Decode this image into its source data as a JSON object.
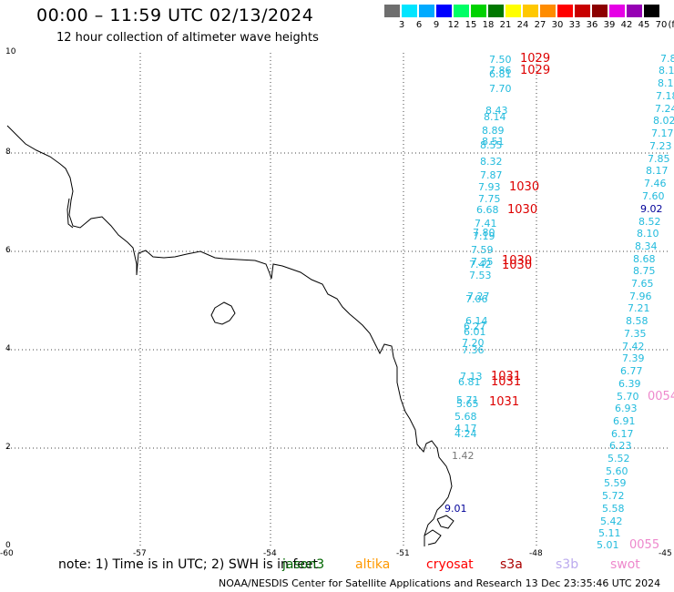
{
  "header": {
    "title": "00:00 – 11:59 UTC 02/13/2024",
    "subtitle": "12 hour collection of altimeter wave heights"
  },
  "legend": {
    "unit": "(ft)",
    "swatch_colors": [
      "#6e6e6e",
      "#00e5ff",
      "#00aaff",
      "#0000ff",
      "#00ff66",
      "#00d200",
      "#007800",
      "#ffff00",
      "#ffc800",
      "#ff8c00",
      "#ff0000",
      "#c80000",
      "#8c0000",
      "#e600e6",
      "#9600b4",
      "#000000"
    ],
    "ticks": [
      "3",
      "6",
      "9",
      "12",
      "15",
      "18",
      "21",
      "24",
      "27",
      "30",
      "33",
      "36",
      "39",
      "42",
      "45",
      "70"
    ]
  },
  "axes": {
    "lon_labels": [
      "-60",
      "-57",
      "-54",
      "-51",
      "-48",
      "-45"
    ],
    "lat_labels": [
      "10",
      "8",
      "6",
      "4",
      "2",
      "0"
    ]
  },
  "colors": {
    "s3a": "#dd0000",
    "cyan": "#22bbdd",
    "navy": "#000099",
    "gray": "#777777",
    "swot": "#ee88cc"
  },
  "measurements": [
    {
      "text": "7.50",
      "color": "cyan"
    },
    {
      "text": "7.86",
      "color": "cyan"
    },
    {
      "text": "6.81",
      "color": "cyan"
    },
    {
      "text": "7.70",
      "color": "cyan"
    },
    {
      "text": "8.43",
      "color": "cyan"
    },
    {
      "text": "8.14",
      "color": "cyan"
    },
    {
      "text": "8.89",
      "color": "cyan"
    },
    {
      "text": "8.51",
      "color": "cyan"
    },
    {
      "text": "8.55",
      "color": "cyan"
    },
    {
      "text": "8.32",
      "color": "cyan"
    },
    {
      "text": "7.87",
      "color": "cyan"
    },
    {
      "text": "7.93",
      "color": "cyan"
    },
    {
      "text": "7.75",
      "color": "cyan"
    },
    {
      "text": "6.68",
      "color": "cyan"
    },
    {
      "text": "7.41",
      "color": "cyan"
    },
    {
      "text": "7.80",
      "color": "cyan"
    },
    {
      "text": "7.19",
      "color": "cyan"
    },
    {
      "text": "7.59",
      "color": "cyan"
    },
    {
      "text": "7.35",
      "color": "cyan"
    },
    {
      "text": "7.42",
      "color": "cyan"
    },
    {
      "text": "7.53",
      "color": "cyan"
    },
    {
      "text": "7.27",
      "color": "cyan"
    },
    {
      "text": "7.06",
      "color": "cyan"
    },
    {
      "text": "6.14",
      "color": "cyan"
    },
    {
      "text": "6.27",
      "color": "cyan"
    },
    {
      "text": "6.01",
      "color": "cyan"
    },
    {
      "text": "7.20",
      "color": "cyan"
    },
    {
      "text": "7.36",
      "color": "cyan"
    },
    {
      "text": "7.13",
      "color": "cyan"
    },
    {
      "text": "6.81",
      "color": "cyan"
    },
    {
      "text": "5.71",
      "color": "cyan"
    },
    {
      "text": "5.65",
      "color": "cyan"
    },
    {
      "text": "5.68",
      "color": "cyan"
    },
    {
      "text": "4.17",
      "color": "cyan"
    },
    {
      "text": "4.24",
      "color": "cyan"
    },
    {
      "text": "1.42",
      "color": "gray"
    },
    {
      "text": "9.01",
      "color": "navy"
    },
    {
      "text": "1029",
      "color": "s3a"
    },
    {
      "text": "1029",
      "color": "s3a"
    },
    {
      "text": "1030",
      "color": "s3a"
    },
    {
      "text": "1030",
      "color": "s3a"
    },
    {
      "text": "1030",
      "color": "s3a"
    },
    {
      "text": "1030",
      "color": "s3a"
    },
    {
      "text": "1031",
      "color": "s3a"
    },
    {
      "text": "1031",
      "color": "s3a"
    },
    {
      "text": "1031",
      "color": "s3a"
    },
    {
      "text": "7.8",
      "color": "cyan"
    },
    {
      "text": "8.1",
      "color": "cyan"
    },
    {
      "text": "8.1",
      "color": "cyan"
    },
    {
      "text": "7.18",
      "color": "cyan"
    },
    {
      "text": "7.24",
      "color": "cyan"
    },
    {
      "text": "8.02",
      "color": "cyan"
    },
    {
      "text": "7.17",
      "color": "cyan"
    },
    {
      "text": "7.23",
      "color": "cyan"
    },
    {
      "text": "7.85",
      "color": "cyan"
    },
    {
      "text": "8.17",
      "color": "cyan"
    },
    {
      "text": "7.46",
      "color": "cyan"
    },
    {
      "text": "7.60",
      "color": "cyan"
    },
    {
      "text": "9.02",
      "color": "navy"
    },
    {
      "text": "8.52",
      "color": "cyan"
    },
    {
      "text": "8.10",
      "color": "cyan"
    },
    {
      "text": "8.34",
      "color": "cyan"
    },
    {
      "text": "8.68",
      "color": "cyan"
    },
    {
      "text": "8.75",
      "color": "cyan"
    },
    {
      "text": "7.65",
      "color": "cyan"
    },
    {
      "text": "7.96",
      "color": "cyan"
    },
    {
      "text": "7.21",
      "color": "cyan"
    },
    {
      "text": "8.58",
      "color": "cyan"
    },
    {
      "text": "7.35",
      "color": "cyan"
    },
    {
      "text": "7.42",
      "color": "cyan"
    },
    {
      "text": "7.39",
      "color": "cyan"
    },
    {
      "text": "6.77",
      "color": "cyan"
    },
    {
      "text": "6.39",
      "color": "cyan"
    },
    {
      "text": "5.70",
      "color": "cyan"
    },
    {
      "text": "6.93",
      "color": "cyan"
    },
    {
      "text": "6.91",
      "color": "cyan"
    },
    {
      "text": "6.17",
      "color": "cyan"
    },
    {
      "text": "6.23",
      "color": "cyan"
    },
    {
      "text": "5.52",
      "color": "cyan"
    },
    {
      "text": "5.60",
      "color": "cyan"
    },
    {
      "text": "5.59",
      "color": "cyan"
    },
    {
      "text": "5.72",
      "color": "cyan"
    },
    {
      "text": "5.58",
      "color": "cyan"
    },
    {
      "text": "5.42",
      "color": "cyan"
    },
    {
      "text": "5.11",
      "color": "cyan"
    },
    {
      "text": "5.01",
      "color": "cyan"
    },
    {
      "text": "0054",
      "color": "swot"
    },
    {
      "text": "0055",
      "color": "swot"
    }
  ],
  "footer": {
    "note_prefix": "note:  1) Time is in UTC; 2) SWH is in feet",
    "satellites": [
      {
        "name": "jason3",
        "color": "#006600"
      },
      {
        "name": "altika",
        "color": "#ff9900"
      },
      {
        "name": "cryosat",
        "color": "#ff0000"
      },
      {
        "name": "s3a",
        "color": "#aa0000"
      },
      {
        "name": "s3b",
        "color": "#bbaaee"
      },
      {
        "name": "swot",
        "color": "#ee88cc"
      }
    ],
    "credit": "NOAA/NESDIS Center for Satellite Applications and Research   13 Dec 23:35:46 UTC 2024"
  }
}
